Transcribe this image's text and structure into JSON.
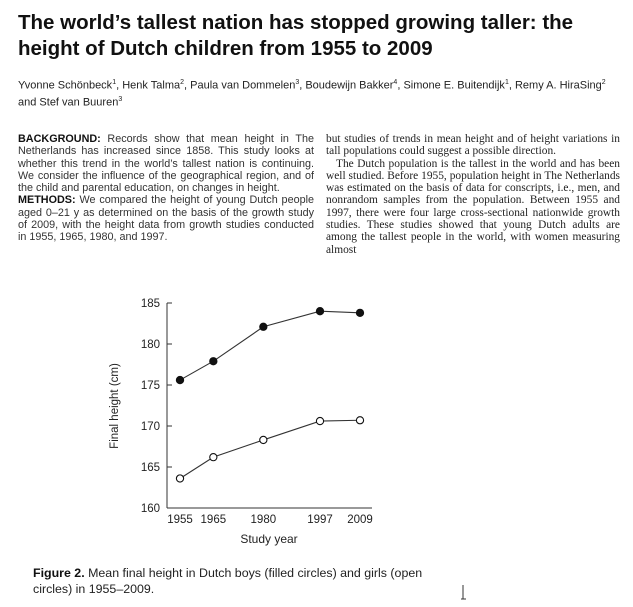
{
  "paper": {
    "title": "The world’s tallest nation has stopped growing taller: the height of Dutch children from 1955 to 2009",
    "authors": [
      {
        "name": "Yvonne Schönbeck",
        "affil": "1"
      },
      {
        "name": "Henk Talma",
        "affil": "2"
      },
      {
        "name": "Paula van Dommelen",
        "affil": "3"
      },
      {
        "name": "Boudewijn Bakker",
        "affil": "4"
      },
      {
        "name": "Simone E. Buitendijk",
        "affil": "1"
      },
      {
        "name": "Remy A. HiraSing",
        "affil": "2"
      },
      {
        "name": "Stef van Buuren",
        "affil": "3"
      }
    ],
    "abstract": {
      "background_label": "BACKGROUND:",
      "background_text": " Records show that mean height in The Netherlands has increased since 1858. This study looks at whether this trend in the world’s tallest nation is continuing. We consider the influence of the geographical region, and of the child and parental education, on changes in height.",
      "methods_label": "METHODS:",
      "methods_text": " We compared the height of young Dutch people aged 0–21 y as determined on the basis of the growth study of 2009, with the height data from growth studies conducted in 1955, 1965, 1980, and 1997."
    },
    "body": {
      "p1": "but studies of trends in mean height and of height variations in tall populations could suggest a possible direction.",
      "p2": "The Dutch population is the tallest in the world and has been well studied. Before 1955, population height in The Netherlands was estimated on the basis of data for conscripts, i.e., men, and nonrandom samples from the population. Between 1955 and 1997, there were four large cross-sectional nationwide growth studies. These studies showed that young Dutch adults are among the tallest people in the world, with women measuring almost"
    },
    "caption_label": "Figure 2.",
    "caption_text": "Mean final height in Dutch boys (filled circles) and girls (open circles) in 1955–2009."
  },
  "chart_data": {
    "type": "line",
    "title": "",
    "xlabel": "Study year",
    "ylabel": "Final height (cm)",
    "x": [
      1955,
      1965,
      1980,
      1997,
      2009
    ],
    "x_ticks": [
      1955,
      1965,
      1980,
      1997,
      2009
    ],
    "y_ticks": [
      160,
      165,
      170,
      175,
      180,
      185
    ],
    "ylim": [
      160,
      185
    ],
    "grid": false,
    "series": [
      {
        "name": "Boys",
        "marker": "filled-circle",
        "values": [
          175.6,
          177.9,
          182.1,
          184.0,
          183.8
        ]
      },
      {
        "name": "Girls",
        "marker": "open-circle",
        "values": [
          163.6,
          166.2,
          168.3,
          170.6,
          170.7
        ]
      }
    ]
  }
}
